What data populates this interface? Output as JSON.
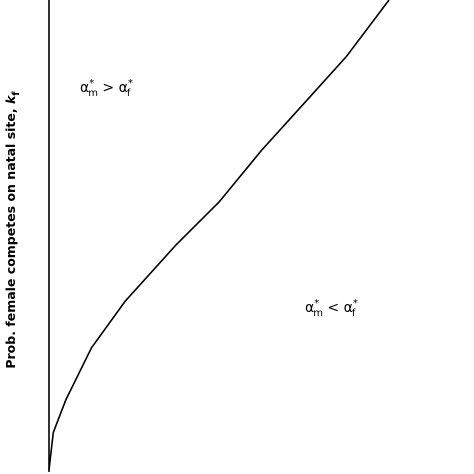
{
  "chart_data": {
    "type": "line",
    "y_label": [
      "Prob. female competes on natal site, ",
      "k",
      "f"
    ],
    "annotations": [
      [
        "α",
        "*",
        "m",
        " > ",
        "α",
        "*",
        "f"
      ],
      [
        "α",
        "*",
        "m",
        " < ",
        "α",
        "*",
        "f"
      ]
    ],
    "x": [
      0,
      0.01,
      0.04,
      0.1,
      0.18,
      0.3,
      0.4,
      0.5,
      0.61,
      0.7,
      0.8
    ],
    "values": [
      0,
      0.08,
      0.15,
      0.26,
      0.36,
      0.48,
      0.57,
      0.68,
      0.79,
      0.88,
      1.0
    ],
    "color": "#000000",
    "xlim": [
      0,
      1
    ],
    "ylim": [
      0,
      1
    ]
  }
}
